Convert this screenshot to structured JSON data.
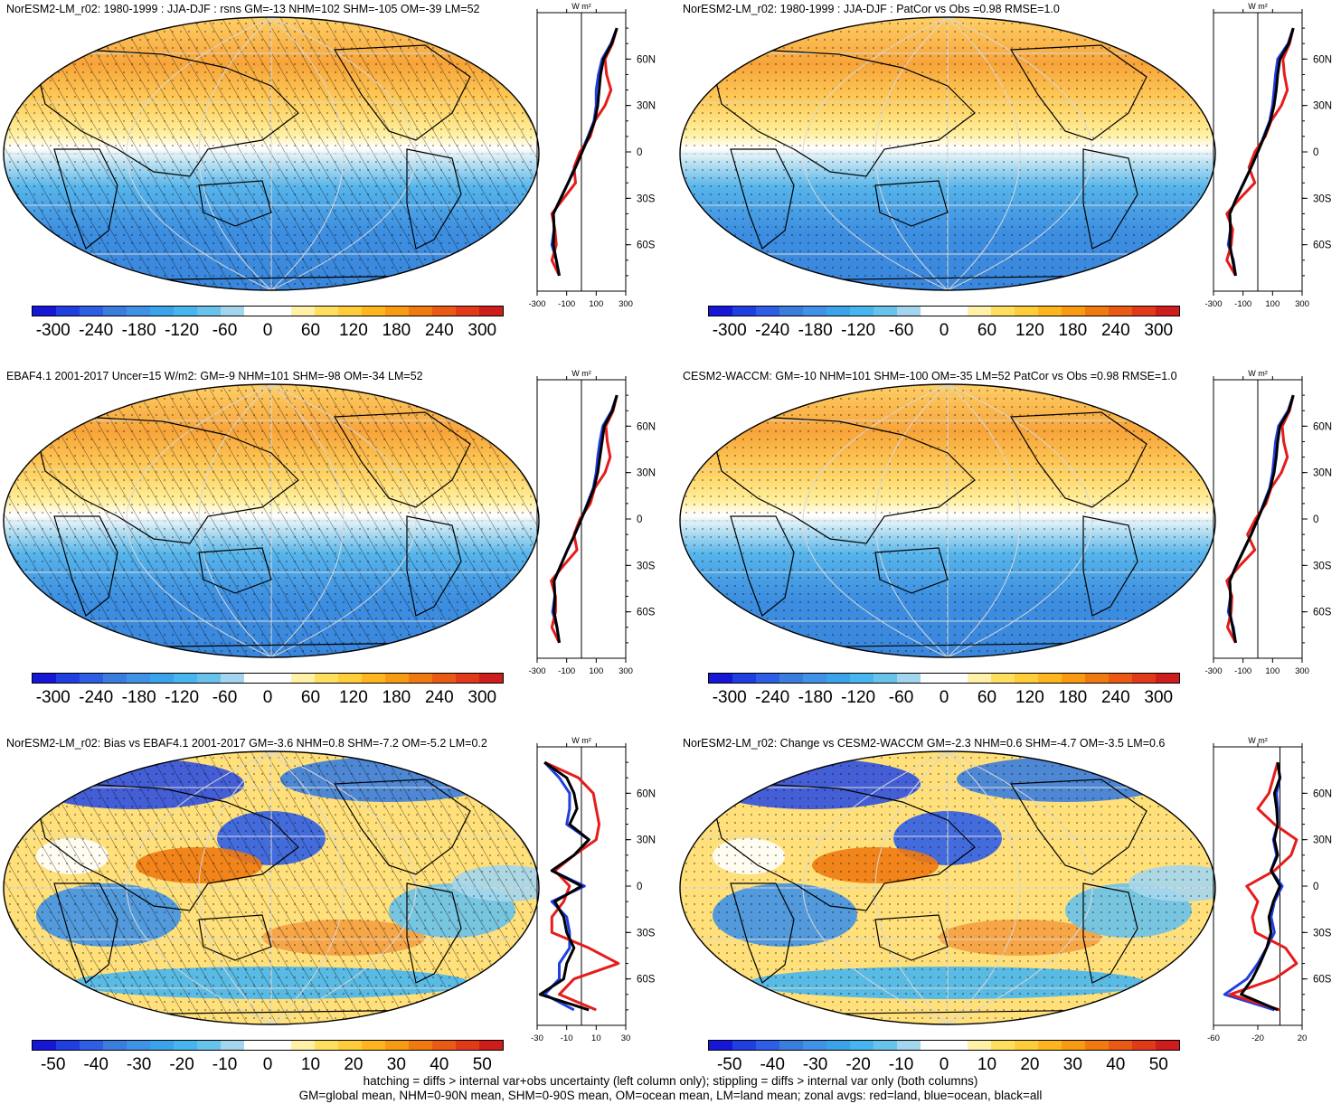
{
  "footer": {
    "line1": "hatching = diffs > internal var+obs uncertainty (left column only); stippling = diffs > internal var only (both columns)",
    "line2": "GM=global mean, NHM=0-90N mean, SHM=0-90S mean, OM=ocean mean, LM=land mean; zonal avgs: red=land, blue=ocean, black=all"
  },
  "colors": {
    "land": "#e61c1c",
    "ocean": "#1f3fe0",
    "all": "#000000",
    "scale": [
      "#1616d8",
      "#1f3fe0",
      "#2f5ee6",
      "#3b7ddd",
      "#3f92e6",
      "#3aa3ea",
      "#47b6ee",
      "#69c2ea",
      "#a3d6ee",
      "#ffffff",
      "#ffffff",
      "#fff1a8",
      "#ffdf60",
      "#ffcc3a",
      "#ffb51e",
      "#f89a12",
      "#f07a10",
      "#ea5a14",
      "#e23a18",
      "#cf1c1c"
    ]
  },
  "chart_data": [
    {
      "type": "heatmap",
      "title": "NorESM2-LM_r02: 1980-1999 : JJA-DJF : rsns GM=-13 NHM=102 SHM=-105 OM=-39 LM=52",
      "colorbar_ticks": [
        "-300",
        "-240",
        "-180",
        "-120",
        "-60",
        "0",
        "60",
        "120",
        "180",
        "240",
        "300"
      ],
      "zonal": {
        "unit": "W m²",
        "x_ticks": [
          "-300",
          "-100",
          "100",
          "300"
        ],
        "xlim": [
          -300,
          300
        ],
        "lat_ticks": [
          "60N",
          "30N",
          "0",
          "30S",
          "60S"
        ],
        "lat": [
          80,
          70,
          60,
          50,
          40,
          30,
          20,
          10,
          0,
          -10,
          -20,
          -30,
          -40,
          -50,
          -60,
          -70,
          -80
        ],
        "all": [
          240,
          205,
          150,
          130,
          120,
          110,
          90,
          50,
          5,
          -40,
          -90,
          -140,
          -190,
          -185,
          -190,
          -170,
          -150
        ],
        "land": [
          240,
          210,
          160,
          170,
          200,
          160,
          90,
          60,
          -10,
          -50,
          -40,
          -120,
          -200,
          -180,
          -170,
          -200,
          -150
        ],
        "ocean": [
          240,
          200,
          140,
          115,
          100,
          100,
          85,
          45,
          0,
          -45,
          -90,
          -140,
          -190,
          -185,
          -200,
          -170,
          -150
        ]
      },
      "hatched": true
    },
    {
      "type": "heatmap",
      "title": "NorESM2-LM_r02: 1980-1999 : JJA-DJF : PatCor vs Obs =0.98 RMSE=1.0",
      "colorbar_ticks": [
        "-300",
        "-240",
        "-180",
        "-120",
        "-60",
        "0",
        "60",
        "120",
        "180",
        "240",
        "300"
      ],
      "zonal": {
        "unit": "W m²",
        "x_ticks": [
          "-300",
          "-100",
          "100",
          "300"
        ],
        "xlim": [
          -300,
          300
        ],
        "lat_ticks": [
          "60N",
          "30N",
          "0",
          "30S",
          "60S"
        ],
        "lat": [
          80,
          70,
          60,
          50,
          40,
          30,
          20,
          10,
          0,
          -10,
          -20,
          -30,
          -40,
          -50,
          -60,
          -70,
          -80
        ],
        "all": [
          240,
          210,
          150,
          135,
          125,
          110,
          85,
          45,
          0,
          -45,
          -95,
          -145,
          -190,
          -185,
          -190,
          -170,
          -150
        ],
        "land": [
          240,
          215,
          170,
          180,
          200,
          160,
          90,
          50,
          -20,
          -60,
          -20,
          -120,
          -210,
          -170,
          -180,
          -210,
          -150
        ],
        "ocean": [
          240,
          205,
          135,
          120,
          110,
          100,
          80,
          40,
          0,
          -45,
          -95,
          -145,
          -190,
          -185,
          -200,
          -165,
          -150
        ]
      },
      "hatched": false
    },
    {
      "type": "heatmap",
      "title": "EBAF4.1 2001-2017 Uncer=15 W/m2: GM=-9 NHM=101 SHM=-98 OM=-34 LM=52",
      "colorbar_ticks": [
        "-300",
        "-240",
        "-180",
        "-120",
        "-60",
        "0",
        "60",
        "120",
        "180",
        "240",
        "300"
      ],
      "zonal": {
        "unit": "W m²",
        "x_ticks": [
          "-300",
          "-100",
          "100",
          "300"
        ],
        "xlim": [
          -300,
          300
        ],
        "lat_ticks": [
          "60N",
          "30N",
          "0",
          "30S",
          "60S"
        ],
        "lat": [
          80,
          70,
          60,
          50,
          40,
          30,
          20,
          10,
          0,
          -10,
          -20,
          -30,
          -40,
          -50,
          -60,
          -70,
          -80
        ],
        "all": [
          240,
          210,
          155,
          140,
          125,
          110,
          85,
          45,
          0,
          -45,
          -95,
          -140,
          -185,
          -180,
          -185,
          -165,
          -150
        ],
        "land": [
          240,
          215,
          165,
          175,
          195,
          160,
          90,
          60,
          -10,
          -50,
          -30,
          -120,
          -205,
          -175,
          -175,
          -200,
          -150
        ],
        "ocean": [
          240,
          205,
          145,
          125,
          110,
          100,
          80,
          40,
          0,
          -45,
          -95,
          -140,
          -185,
          -180,
          -195,
          -165,
          -150
        ]
      },
      "hatched": true
    },
    {
      "type": "heatmap",
      "title": "CESM2-WACCM: GM=-10 NHM=101 SHM=-100 OM=-35 LM=52 PatCor vs Obs =0.98 RMSE=1.0",
      "colorbar_ticks": [
        "-300",
        "-240",
        "-180",
        "-120",
        "-60",
        "0",
        "60",
        "120",
        "180",
        "240",
        "300"
      ],
      "zonal": {
        "unit": "W m²",
        "x_ticks": [
          "-300",
          "-100",
          "100",
          "300"
        ],
        "xlim": [
          -300,
          300
        ],
        "lat_ticks": [
          "60N",
          "30N",
          "0",
          "30S",
          "60S"
        ],
        "lat": [
          80,
          70,
          60,
          50,
          40,
          30,
          20,
          10,
          0,
          -10,
          -20,
          -30,
          -40,
          -50,
          -60,
          -70,
          -80
        ],
        "all": [
          240,
          210,
          150,
          135,
          125,
          110,
          85,
          45,
          0,
          -45,
          -95,
          -145,
          -190,
          -185,
          -190,
          -170,
          -150
        ],
        "land": [
          240,
          215,
          165,
          175,
          200,
          160,
          90,
          55,
          -15,
          -70,
          -20,
          -120,
          -210,
          -175,
          -180,
          -205,
          -150
        ],
        "ocean": [
          240,
          205,
          140,
          120,
          110,
          100,
          80,
          40,
          0,
          -45,
          -95,
          -145,
          -190,
          -185,
          -200,
          -165,
          -150
        ]
      },
      "hatched": false
    },
    {
      "type": "heatmap",
      "title": "NorESM2-LM_r02: Bias vs EBAF4.1 2001-2017 GM=-3.6 NHM=0.8 SHM=-7.2 OM=-5.2 LM=0.2",
      "colorbar_ticks": [
        "-50",
        "-40",
        "-30",
        "-20",
        "-10",
        "0",
        "10",
        "20",
        "30",
        "40",
        "50"
      ],
      "zonal": {
        "unit": "W m²",
        "x_ticks": [
          "-30",
          "-10",
          "10",
          "30"
        ],
        "xlim": [
          -30,
          30
        ],
        "lat_ticks": [
          "60N",
          "30N",
          "0",
          "30S",
          "60S"
        ],
        "lat": [
          80,
          70,
          60,
          50,
          40,
          30,
          20,
          10,
          0,
          -10,
          -20,
          -30,
          -40,
          -50,
          -60,
          -70,
          -80
        ],
        "all": [
          -25,
          -10,
          -5,
          -3,
          -8,
          5,
          -5,
          -20,
          0,
          -18,
          -12,
          -10,
          -5,
          -10,
          -12,
          -28,
          5
        ],
        "land": [
          -25,
          -2,
          8,
          10,
          12,
          10,
          -5,
          -18,
          -8,
          -12,
          -20,
          -20,
          5,
          25,
          -5,
          -15,
          10
        ],
        "ocean": [
          -25,
          -15,
          -8,
          -8,
          -10,
          5,
          -5,
          -20,
          2,
          -20,
          -10,
          -8,
          -8,
          -15,
          -15,
          -25,
          -5
        ]
      },
      "hatched": true
    },
    {
      "type": "heatmap",
      "title": "NorESM2-LM_r02: Change vs CESM2-WACCM GM=-2.3 NHM=0.6 SHM=-4.7 OM=-3.5 LM=0.6",
      "colorbar_ticks": [
        "-50",
        "-40",
        "-30",
        "-20",
        "-10",
        "0",
        "10",
        "20",
        "30",
        "40",
        "50"
      ],
      "zonal": {
        "unit": "W m²",
        "x_ticks": [
          "-60",
          "-20",
          "20"
        ],
        "xlim": [
          -60,
          20
        ],
        "lat_ticks": [
          "60N",
          "30N",
          "0",
          "30S",
          "60S"
        ],
        "lat": [
          80,
          70,
          60,
          50,
          40,
          30,
          20,
          10,
          0,
          -10,
          -20,
          -30,
          -40,
          -50,
          -60,
          -70,
          -80
        ],
        "all": [
          -2,
          0,
          -5,
          -3,
          -2,
          -5,
          -2,
          -8,
          0,
          -6,
          -10,
          -8,
          -12,
          -18,
          -25,
          -35,
          -2
        ],
        "land": [
          -2,
          -6,
          -10,
          -20,
          -5,
          15,
          10,
          -5,
          -30,
          -20,
          -25,
          -22,
          5,
          15,
          -5,
          -45,
          0
        ],
        "ocean": [
          -2,
          0,
          -3,
          -2,
          -2,
          -6,
          -3,
          -8,
          2,
          -5,
          -8,
          -5,
          -12,
          -20,
          -30,
          -50,
          -5
        ]
      },
      "hatched": false
    }
  ]
}
